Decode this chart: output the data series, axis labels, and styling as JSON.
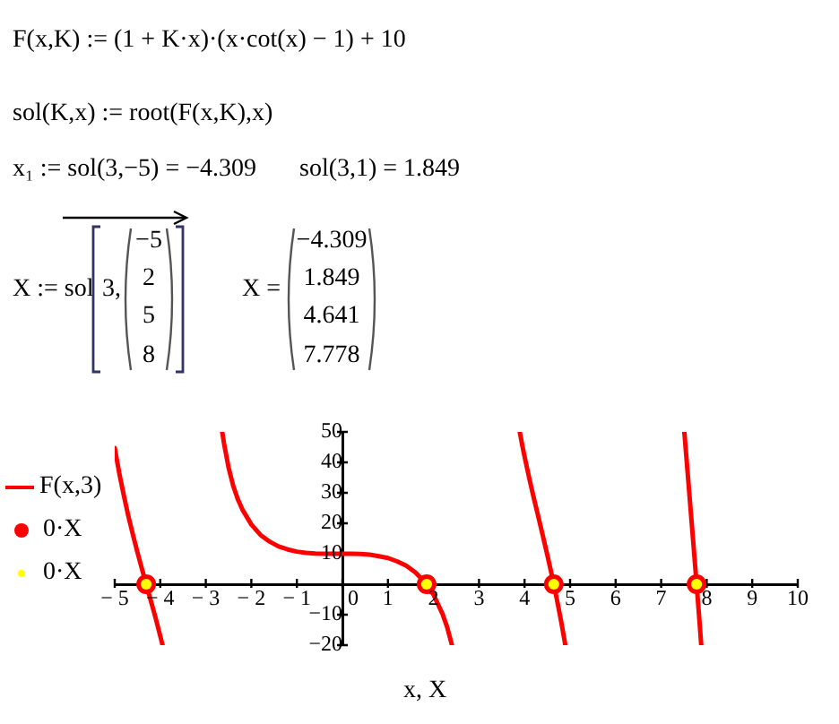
{
  "chart_data": {
    "type": "line",
    "annotations": [
      "F(x,K) := (1 + K·x)·(x·cot(x) − 1) + 10",
      "sol(K,x) := root(F(x,K),x)",
      "x₁ := sol(3,−5) = −4.309",
      "sol(3,1) = 1.849",
      "X := sol",
      "3,",
      "−5",
      "2",
      "5",
      "8",
      "X =",
      "−4.309",
      "1.849",
      "4.641",
      "7.778"
    ],
    "xlabel": "x, X",
    "series": [
      {
        "name": "F(x,3)",
        "type": "line",
        "color": "#ff0000",
        "x": [
          -5,
          -4.9,
          -4.8,
          -4.7,
          -4.6,
          -4.5,
          -4.4,
          -4.3,
          -4.2,
          -4.1,
          -4,
          -3.95,
          -3.14,
          -2.64,
          -2.6,
          -2.5,
          -2.4,
          -2.3,
          -2.2,
          -2,
          -1.8,
          -1.6,
          -1.4,
          -1.2,
          -1,
          -0.8,
          -0.6,
          -0.4,
          -0.2,
          0,
          0.2,
          0.4,
          0.6,
          0.8,
          1,
          1.2,
          1.4,
          1.6,
          1.8,
          2,
          2.2,
          2.3,
          2.4,
          2.405,
          3.14,
          3.895,
          3.95,
          4,
          4.1,
          4.2,
          4.3,
          4.4,
          4.5,
          4.6,
          4.7,
          4.8,
          4.896,
          6.28,
          7.509,
          7.55,
          7.6,
          7.65,
          7.7,
          7.75,
          7.8,
          7.85,
          7.88
        ],
        "values": [
          44.7,
          36.4,
          29.1,
          22.3,
          16.2,
          10.4,
          4.9,
          -0.5,
          -5.8,
          -11.2,
          -17,
          -20,
          null,
          50,
          46.2,
          38.3,
          32.4,
          28,
          24.6,
          19.6,
          16.2,
          14,
          12.4,
          11.4,
          10.7,
          10.3,
          10.1,
          10,
          10,
          10,
          10,
          9.9,
          9.7,
          9.2,
          8.6,
          7.5,
          6.1,
          3.9,
          0.9,
          -3.4,
          -9.8,
          -14.1,
          -19.7,
          -20,
          null,
          50,
          45.6,
          41.9,
          35,
          28.5,
          22.3,
          16,
          9.6,
          2.9,
          -4.2,
          -11.9,
          -20,
          null,
          50,
          42.4,
          33.2,
          23.9,
          14.7,
          5.4,
          -4.1,
          -13.8,
          -20
        ]
      },
      {
        "name": "0·X",
        "type": "scatter",
        "color": "#ff0000",
        "marker": "circle",
        "x": [
          -4.309,
          1.849,
          4.641,
          7.778
        ],
        "values": [
          0,
          0,
          0,
          0
        ]
      },
      {
        "name": "0·X",
        "type": "scatter",
        "color": "#ffff00",
        "marker": "circle",
        "x": [
          -4.309,
          1.849,
          4.641,
          7.778
        ],
        "values": [
          0,
          0,
          0,
          0
        ]
      }
    ],
    "xlim": [
      -5,
      10
    ],
    "xticks": [
      {
        "value": -5,
        "label": "− 5"
      },
      {
        "value": -4,
        "label": "− 4"
      },
      {
        "value": -3,
        "label": "− 3"
      },
      {
        "value": -2,
        "label": "− 2"
      },
      {
        "value": -1,
        "label": "− 1"
      },
      0,
      1,
      2,
      3,
      4,
      5,
      6,
      7,
      8,
      9,
      10
    ],
    "ylim": [
      -20,
      50
    ],
    "yticks": [
      {
        "value": -20,
        "label": "−20"
      },
      {
        "value": -10,
        "label": "−10"
      },
      10,
      20,
      30,
      40,
      50
    ],
    "legend": "left"
  }
}
